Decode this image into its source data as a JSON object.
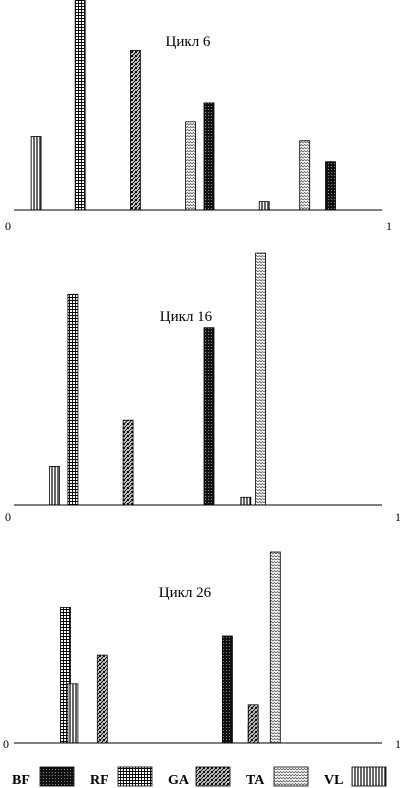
{
  "chart_data": [
    {
      "type": "bar",
      "title": "Цикл 6",
      "xlim": [
        0,
        1
      ],
      "ylim": [
        0,
        1
      ],
      "x_tick_labels": [
        "0",
        "1"
      ],
      "bars": [
        {
          "series": "VL",
          "x": 0.06,
          "value": 0.35
        },
        {
          "series": "RF",
          "x": 0.18,
          "value": 1.0
        },
        {
          "series": "GA",
          "x": 0.33,
          "value": 0.76
        },
        {
          "series": "TA",
          "x": 0.48,
          "value": 0.42
        },
        {
          "series": "BF",
          "x": 0.53,
          "value": 0.51
        },
        {
          "series": "VL",
          "x": 0.68,
          "value": 0.04
        },
        {
          "series": "TA",
          "x": 0.79,
          "value": 0.33
        },
        {
          "series": "BF",
          "x": 0.86,
          "value": 0.23
        }
      ]
    },
    {
      "type": "bar",
      "title": "Цикл 16",
      "xlim": [
        0,
        1
      ],
      "ylim": [
        0,
        1
      ],
      "x_tick_labels": [
        "0",
        "1"
      ],
      "bars": [
        {
          "series": "VL",
          "x": 0.11,
          "value": 0.15
        },
        {
          "series": "RF",
          "x": 0.16,
          "value": 0.82
        },
        {
          "series": "GA",
          "x": 0.31,
          "value": 0.33
        },
        {
          "series": "BF",
          "x": 0.53,
          "value": 0.69
        },
        {
          "series": "VL",
          "x": 0.63,
          "value": 0.03
        },
        {
          "series": "TA",
          "x": 0.67,
          "value": 0.98
        }
      ]
    },
    {
      "type": "bar",
      "title": "Цикл 26",
      "xlim": [
        0,
        1
      ],
      "ylim": [
        0,
        1
      ],
      "x_tick_labels": [
        "0",
        "1"
      ],
      "bars": [
        {
          "series": "RF",
          "x": 0.14,
          "value": 0.71
        },
        {
          "series": "VL",
          "x": 0.16,
          "value": 0.31
        },
        {
          "series": "GA",
          "x": 0.24,
          "value": 0.46
        },
        {
          "series": "BF",
          "x": 0.58,
          "value": 0.56
        },
        {
          "series": "VL",
          "x": 0.65,
          "value": 0.1
        },
        {
          "series": "GA",
          "x": 0.65,
          "value": 0.2
        },
        {
          "series": "TA",
          "x": 0.71,
          "value": 1.0
        }
      ]
    }
  ],
  "legend": {
    "placement": "bottom",
    "items": [
      {
        "label": "BF",
        "pattern": "dense-crosshatch"
      },
      {
        "label": "RF",
        "pattern": "grid"
      },
      {
        "label": "GA",
        "pattern": "wavy"
      },
      {
        "label": "TA",
        "pattern": "vertical-lines"
      },
      {
        "label": "VL",
        "pattern": "diagonal"
      }
    ]
  }
}
